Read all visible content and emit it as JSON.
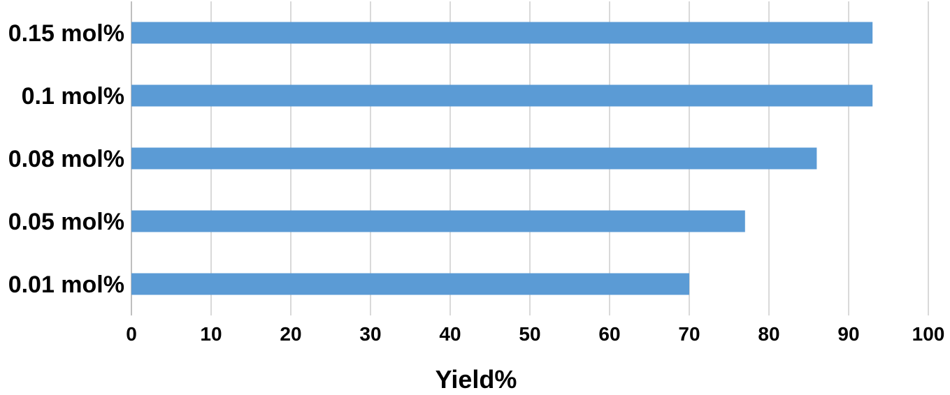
{
  "chart_data": {
    "type": "bar",
    "orientation": "horizontal",
    "title": "",
    "xlabel": "Yield%",
    "ylabel": "",
    "categories": [
      "0.01 mol%",
      "0.05 mol%",
      "0.08 mol%",
      "0.1 mol%",
      "0.15 mol%"
    ],
    "values": [
      70,
      77,
      86,
      93,
      93
    ],
    "xlim": [
      0,
      100
    ],
    "x_ticks": [
      "0",
      "10",
      "20",
      "30",
      "40",
      "50",
      "60",
      "70",
      "80",
      "90",
      "100"
    ],
    "grid": true,
    "legend": "none",
    "bar_color": "#5B9BD5",
    "grid_color": "#D9D9D9"
  }
}
